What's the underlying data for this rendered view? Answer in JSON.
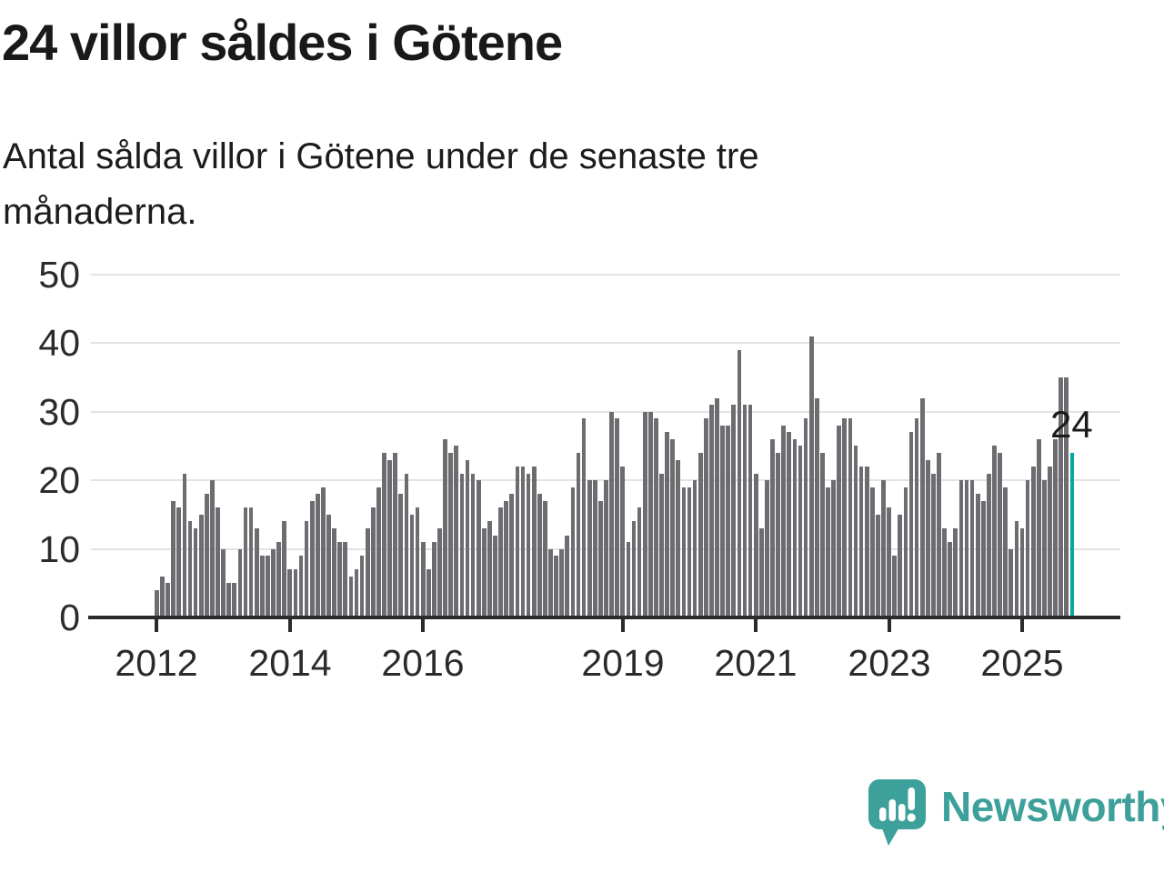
{
  "title": "24 villor såldes i Götene",
  "subtitle": "Antal sålda villor i Götene under de senaste tre månaderna.",
  "chart_data": {
    "type": "bar",
    "title": "24 villor såldes i Götene",
    "subtitle": "Antal sålda villor i Götene under de senaste tre månaderna.",
    "xlabel": "",
    "ylabel": "",
    "frequency": "monthly",
    "start_month": "2012-01",
    "end_month": "2025-10",
    "ylim": [
      0,
      52
    ],
    "grid": true,
    "legend": "none",
    "y_ticks": [
      0,
      10,
      20,
      30,
      40,
      50
    ],
    "x_tick_years": [
      2012,
      2014,
      2016,
      2019,
      2021,
      2023,
      2025
    ],
    "values": [
      4,
      6,
      5,
      17,
      16,
      21,
      14,
      13,
      15,
      18,
      20,
      16,
      10,
      5,
      5,
      10,
      16,
      16,
      13,
      9,
      9,
      10,
      11,
      14,
      7,
      7,
      9,
      14,
      17,
      18,
      19,
      15,
      13,
      11,
      11,
      6,
      7,
      9,
      13,
      16,
      19,
      24,
      23,
      24,
      18,
      21,
      15,
      16,
      11,
      7,
      11,
      13,
      26,
      24,
      25,
      21,
      23,
      21,
      20,
      13,
      14,
      12,
      16,
      17,
      18,
      22,
      22,
      21,
      22,
      18,
      17,
      10,
      9,
      10,
      12,
      19,
      24,
      29,
      20,
      20,
      17,
      20,
      30,
      29,
      22,
      11,
      14,
      16,
      30,
      30,
      29,
      21,
      27,
      26,
      23,
      19,
      19,
      20,
      24,
      29,
      31,
      32,
      28,
      28,
      31,
      39,
      31,
      31,
      21,
      13,
      20,
      26,
      24,
      28,
      27,
      26,
      25,
      29,
      41,
      32,
      24,
      19,
      20,
      28,
      29,
      29,
      25,
      22,
      22,
      19,
      15,
      20,
      16,
      9,
      15,
      19,
      27,
      29,
      32,
      23,
      21,
      24,
      13,
      11,
      13,
      20,
      20,
      20,
      18,
      17,
      21,
      25,
      24,
      19,
      10,
      14,
      13,
      20,
      22,
      26,
      20,
      22,
      26,
      35,
      35,
      24
    ],
    "highlight": {
      "index": 165,
      "value": 24,
      "label": "24"
    }
  },
  "colors": {
    "bar": "#6d6d71",
    "highlight": "#0ba79e",
    "grid": "#e3e3e3",
    "axis": "#2b2b2b",
    "tick_text": "#2b2b2b",
    "text": "#1c1c1c",
    "logo": "#3da09a",
    "background": "#ffffff"
  },
  "branding": {
    "logo_text": "Newsworthy",
    "logo_icon": "speech-bubble-bar-chart"
  }
}
